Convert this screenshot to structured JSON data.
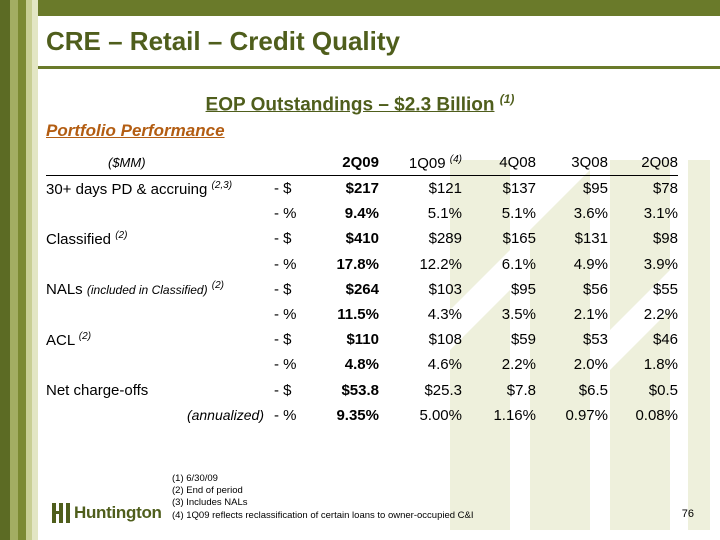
{
  "title": "CRE – Retail – Credit Quality",
  "subtitle": {
    "text": "EOP Outstandings – $2.3 Billion",
    "note": "(1)"
  },
  "section": "Portfolio Performance",
  "table": {
    "unit_label": "($MM)",
    "columns": [
      "2Q09",
      "1Q09",
      "4Q08",
      "3Q08",
      "2Q08"
    ],
    "column_note": "(4)",
    "rows": [
      {
        "label": "30+ days PD & accruing",
        "note": "(2,3)",
        "unit": "- $",
        "values": [
          "$217",
          "$121",
          "$137",
          "$95",
          "$78"
        ]
      },
      {
        "label": "",
        "unit": "- %",
        "values": [
          "9.4%",
          "5.1%",
          "5.1%",
          "3.6%",
          "3.1%"
        ]
      },
      {
        "label": "Classified",
        "note": "(2)",
        "unit": "- $",
        "values": [
          "$410",
          "$289",
          "$165",
          "$131",
          "$98"
        ]
      },
      {
        "label": "",
        "unit": "- %",
        "values": [
          "17.8%",
          "12.2%",
          "6.1%",
          "4.9%",
          "3.9%"
        ]
      },
      {
        "label": "NALs",
        "sublabel": "(included in Classified)",
        "note": "(2)",
        "unit": "- $",
        "values": [
          "$264",
          "$103",
          "$95",
          "$56",
          "$55"
        ]
      },
      {
        "label": "",
        "unit": "- %",
        "values": [
          "11.5%",
          "4.3%",
          "3.5%",
          "2.1%",
          "2.2%"
        ]
      },
      {
        "label": "ACL",
        "note": "(2)",
        "unit": "- $",
        "values": [
          "$110",
          "$108",
          "$59",
          "$53",
          "$46"
        ]
      },
      {
        "label": "",
        "unit": "- %",
        "values": [
          "4.8%",
          "4.6%",
          "2.2%",
          "2.0%",
          "1.8%"
        ]
      },
      {
        "label": "Net charge-offs",
        "unit": "- $",
        "values": [
          "$53.8",
          "$25.3",
          "$7.8",
          "$6.5",
          "$0.5"
        ]
      },
      {
        "label": "(annualized)",
        "unit": "- %",
        "values": [
          "9.35%",
          "5.00%",
          "1.16%",
          "0.97%",
          "0.08%"
        ]
      }
    ]
  },
  "footnotes": [
    "(1)  6/30/09",
    "(2)  End of period",
    "(3)  Includes NALs",
    "(4)  1Q09 reflects reclassification of certain loans to owner-occupied C&I"
  ],
  "logo_text": "Huntington",
  "page_number": "76",
  "colors": {
    "olive_dark": "#4f5e1c",
    "olive": "#6a7a2a",
    "orange": "#b35d12",
    "watermark": "#eef0dc"
  }
}
